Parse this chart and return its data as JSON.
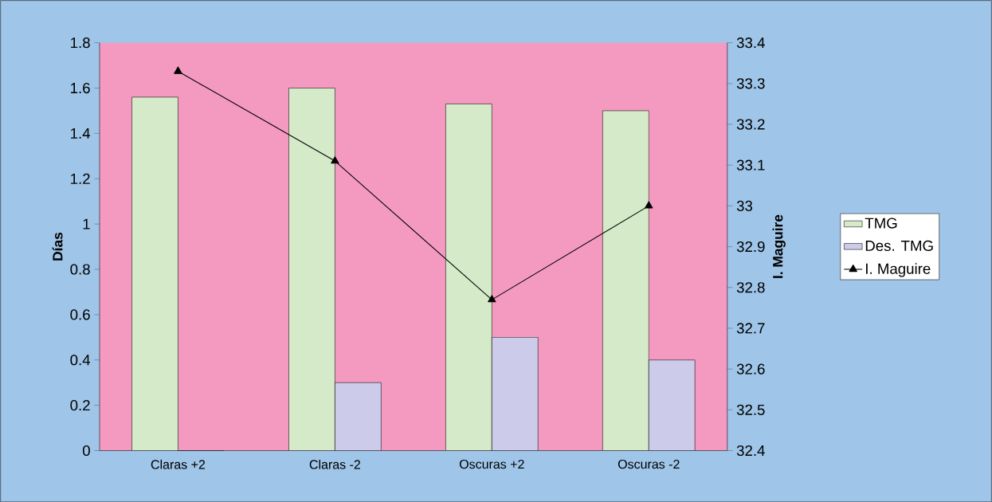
{
  "chart_data": {
    "type": "bar",
    "categories": [
      "Claras +2",
      "Claras -2",
      "Oscuras +2",
      "Oscuras -2"
    ],
    "ylabel": "Días",
    "y2label": "I. Maguire",
    "ylim": [
      0,
      1.8
    ],
    "yticks": [
      0,
      0.2,
      0.4,
      0.6,
      0.8,
      1,
      1.2,
      1.4,
      1.6,
      1.8
    ],
    "y2lim": [
      32.4,
      33.4
    ],
    "y2ticks": [
      32.4,
      32.5,
      32.6,
      32.7,
      32.8,
      32.9,
      33,
      33.1,
      33.2,
      33.3,
      33.4
    ],
    "legend": "right",
    "series": [
      {
        "name": "TMG",
        "color": "#d4eac8",
        "values": [
          1.56,
          1.6,
          1.53,
          1.5
        ]
      },
      {
        "name": "Des. TMG",
        "color": "#ccccea",
        "values": [
          0,
          0.3,
          0.5,
          0.4
        ]
      },
      {
        "name": "I. Maguire",
        "type": "line",
        "axis": "y2",
        "marker": "triangle",
        "color": "#000000",
        "values": [
          33.33,
          33.11,
          32.77,
          33.0
        ]
      }
    ]
  }
}
